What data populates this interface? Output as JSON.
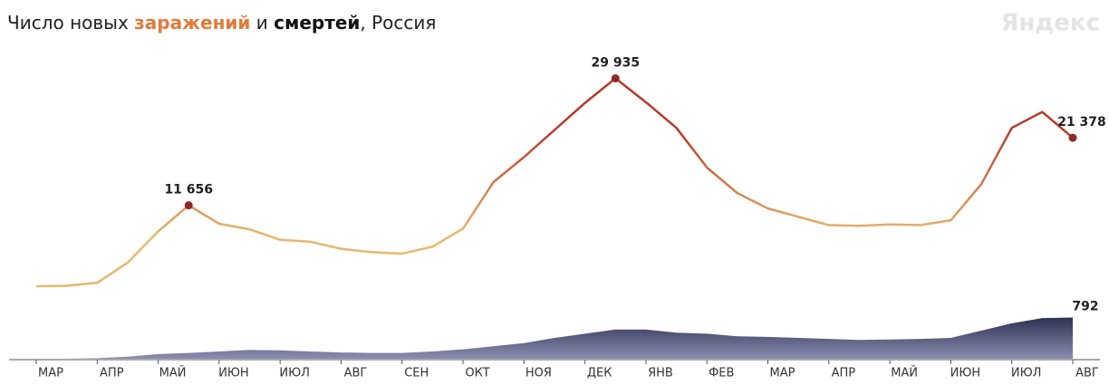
{
  "chart_data": {
    "type": "line",
    "title": {
      "prefix": "Число новых",
      "infections": "заражений",
      "and": "и",
      "deaths": "смертей",
      "suffix": ", Россия"
    },
    "brand": "Яндекс",
    "categories": [
      "МАР",
      null,
      "АПР",
      null,
      "МАЙ",
      null,
      "ИЮН",
      null,
      "ИЮЛ",
      null,
      "АВГ",
      null,
      "СЕН",
      null,
      "ОКТ",
      null,
      "НОЯ",
      null,
      "ДЕК",
      null,
      "ЯНВ",
      null,
      "ФЕВ",
      null,
      "МАР",
      null,
      "АПР",
      null,
      "МАЙ",
      null,
      "ИЮН",
      null,
      "ИЮЛ",
      null,
      "АВГ"
    ],
    "series": [
      {
        "name": "заражений",
        "color": "#b5392a",
        "color_low": "#e6b86c",
        "values": [
          0,
          60,
          500,
          3400,
          7900,
          11656,
          9000,
          8200,
          6700,
          6400,
          5400,
          4900,
          4700,
          5700,
          8300,
          15000,
          18600,
          22500,
          26400,
          29935,
          26500,
          22800,
          17100,
          13400,
          11200,
          10000,
          8800,
          8700,
          8900,
          8800,
          9500,
          14700,
          22800,
          25100,
          21378
        ],
        "value_labels": [
          null,
          null,
          null,
          null,
          null,
          "11 656",
          null,
          null,
          null,
          null,
          null,
          null,
          null,
          null,
          null,
          null,
          null,
          null,
          null,
          "29 935",
          null,
          null,
          null,
          null,
          null,
          null,
          null,
          null,
          null,
          null,
          null,
          null,
          null,
          null,
          "21 378"
        ]
      },
      {
        "name": "смертей",
        "color": "#2e3052",
        "axis": "y2",
        "values": [
          0,
          1,
          10,
          40,
          90,
          110,
          140,
          170,
          160,
          140,
          120,
          110,
          110,
          140,
          180,
          240,
          300,
          400,
          480,
          560,
          560,
          500,
          480,
          430,
          420,
          400,
          380,
          360,
          370,
          380,
          400,
          540,
          680,
          780,
          792
        ]
      }
    ],
    "ylim": [
      0,
      30000
    ],
    "y2lim": [
      0,
      800
    ]
  }
}
